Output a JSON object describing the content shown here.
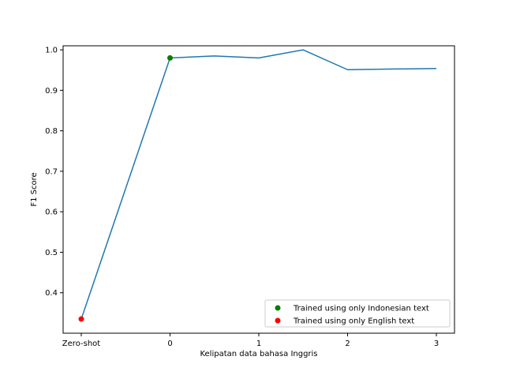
{
  "chart_data": {
    "type": "line",
    "xlabel": "Kelipatan data bahasa Inggris",
    "ylabel": "F1 Score",
    "xlim": [
      -1.0,
      3.0
    ],
    "ylim": [
      0.3,
      1.01
    ],
    "xticks": [
      {
        "value": -1,
        "label": "Zero-shot"
      },
      {
        "value": 0,
        "label": "0"
      },
      {
        "value": 1,
        "label": "1"
      },
      {
        "value": 2,
        "label": "2"
      },
      {
        "value": 3,
        "label": "3"
      }
    ],
    "yticks": [
      {
        "value": 0.4,
        "label": "0.4"
      },
      {
        "value": 0.5,
        "label": "0.5"
      },
      {
        "value": 0.6,
        "label": "0.6"
      },
      {
        "value": 0.7,
        "label": "0.7"
      },
      {
        "value": 0.8,
        "label": "0.8"
      },
      {
        "value": 0.9,
        "label": "0.9"
      },
      {
        "value": 1.0,
        "label": "1.0"
      }
    ],
    "series": [
      {
        "color": "#1f77b4",
        "x": [
          -1,
          0,
          0.5,
          1,
          1.5,
          2,
          3
        ],
        "y": [
          0.335,
          0.98,
          0.985,
          0.98,
          1.0,
          0.951,
          0.954
        ]
      }
    ],
    "markers": [
      {
        "name": "Trained using only Indonesian text",
        "color": "#008000",
        "x": 0,
        "y": 0.98
      },
      {
        "name": "Trained using only English text",
        "color": "#ff0000",
        "x": -1,
        "y": 0.335
      }
    ],
    "legend_position": "bottom-right",
    "grid": false
  }
}
